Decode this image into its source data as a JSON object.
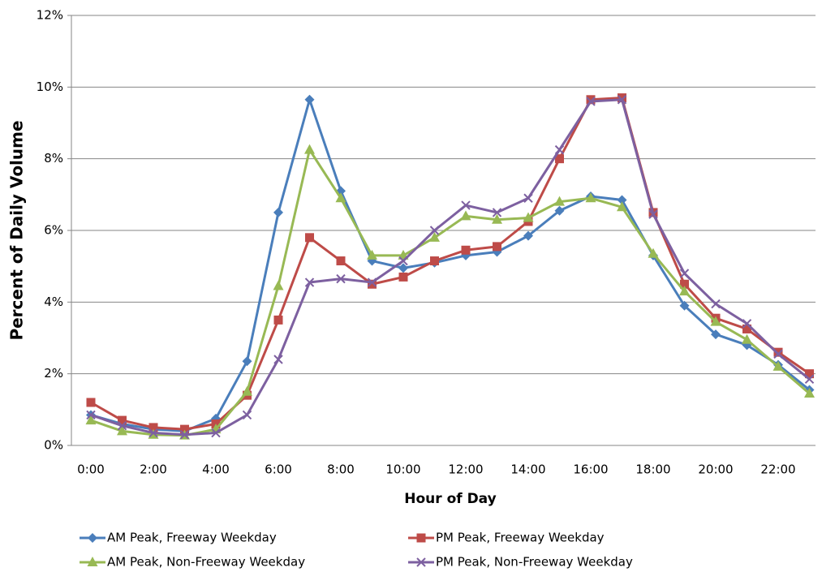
{
  "chart_data": {
    "type": "line",
    "xlabel": "Hour of Day",
    "ylabel": "Percent of Daily Volume",
    "categories": [
      "0:00",
      null,
      "2:00",
      null,
      "4:00",
      null,
      "6:00",
      null,
      "8:00",
      null,
      "10:00",
      null,
      "12:00",
      null,
      "14:00",
      null,
      "16:00",
      null,
      "18:00",
      null,
      "20:00",
      null,
      "22:00",
      null
    ],
    "ylim": [
      0,
      12
    ],
    "yticks": [
      {
        "value": 0,
        "label": "0%"
      },
      {
        "value": 2,
        "label": "2%"
      },
      {
        "value": 4,
        "label": "4%"
      },
      {
        "value": 6,
        "label": "6%"
      },
      {
        "value": 8,
        "label": "8%"
      },
      {
        "value": 10,
        "label": "10%"
      },
      {
        "value": 12,
        "label": "12%"
      }
    ],
    "grid": true,
    "legend": "bottom",
    "series": [
      {
        "name": "AM Peak, Freeway Weekday",
        "color": "#4a7ebb",
        "marker": "diamond",
        "values": [
          0.85,
          0.6,
          0.45,
          0.4,
          0.75,
          2.35,
          6.5,
          9.65,
          7.1,
          5.15,
          4.95,
          5.1,
          5.3,
          5.4,
          5.85,
          6.55,
          6.95,
          6.85,
          5.3,
          3.9,
          3.1,
          2.8,
          2.25,
          1.55
        ]
      },
      {
        "name": "PM Peak, Freeway Weekday",
        "color": "#be4b48",
        "marker": "square",
        "values": [
          1.2,
          0.7,
          0.5,
          0.45,
          0.6,
          1.4,
          3.5,
          5.8,
          5.15,
          4.5,
          4.7,
          5.15,
          5.45,
          5.55,
          6.25,
          8.0,
          9.65,
          9.7,
          6.5,
          4.5,
          3.55,
          3.25,
          2.6,
          2.0
        ]
      },
      {
        "name": "AM Peak, Non-Freeway Weekday",
        "color": "#98b954",
        "marker": "triangle",
        "values": [
          0.7,
          0.4,
          0.3,
          0.28,
          0.45,
          1.5,
          4.45,
          8.25,
          6.9,
          5.3,
          5.3,
          5.8,
          6.4,
          6.3,
          6.35,
          6.8,
          6.9,
          6.65,
          5.35,
          4.3,
          3.45,
          2.95,
          2.2,
          1.45
        ]
      },
      {
        "name": "PM Peak, Non-Freeway Weekday",
        "color": "#7d60a0",
        "marker": "x",
        "values": [
          0.85,
          0.55,
          0.35,
          0.3,
          0.35,
          0.85,
          2.4,
          4.55,
          4.65,
          4.55,
          5.15,
          6.0,
          6.7,
          6.5,
          6.9,
          8.25,
          9.6,
          9.65,
          6.45,
          4.8,
          3.95,
          3.4,
          2.55,
          1.85
        ]
      }
    ]
  }
}
